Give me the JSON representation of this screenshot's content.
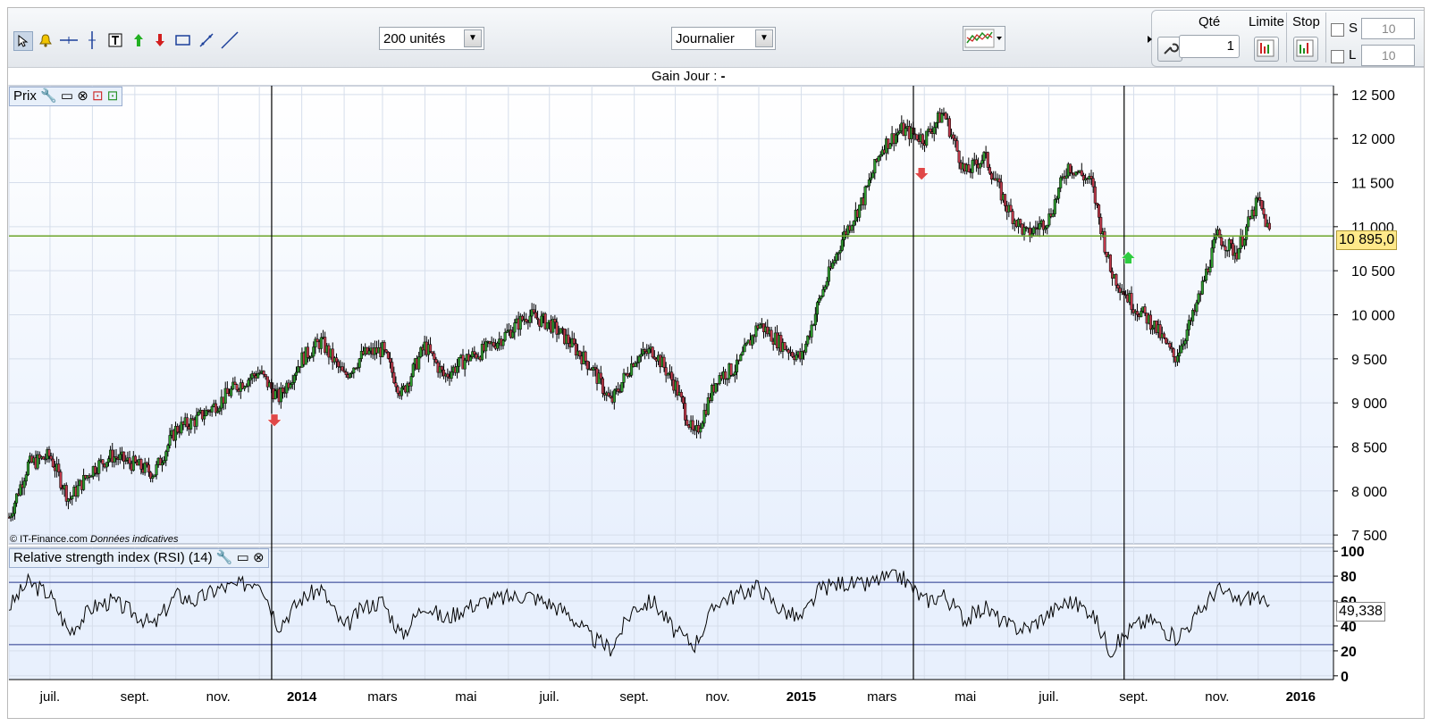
{
  "toolbar": {
    "units_select": "200 unités",
    "period_select": "Journalier",
    "order": {
      "qty_label": "Qté",
      "qty_value": "1",
      "limit_label": "Limite",
      "stop_label": "Stop",
      "s_label": "S",
      "l_label": "L",
      "s_value": "10",
      "l_value": "10"
    }
  },
  "header": {
    "gain_label": "Gain Jour :",
    "gain_value": "-"
  },
  "price_panel": {
    "title": "Prix",
    "current_price": "10 895,0",
    "copyright": "© IT-Finance.com",
    "disclaimer": "Données indicatives"
  },
  "rsi_panel": {
    "title": "Relative strength index (RSI) (14)",
    "current_value": "49,338"
  },
  "colors": {
    "up": "#2e9a2e",
    "down": "#c0394b",
    "horizontal_line": "#6ca52a",
    "panel_bg": "#e8f0fd",
    "grid": "#d6deeb"
  },
  "chart_data": [
    {
      "type": "candlestick",
      "title": "Prix",
      "x_axis_ticks": [
        "juil.",
        "sept.",
        "nov.",
        "2014",
        "mars",
        "mai",
        "juil.",
        "sept.",
        "nov.",
        "2015",
        "mars",
        "mai",
        "juil.",
        "sept.",
        "nov.",
        "2016"
      ],
      "y_ticks": [
        "12 500",
        "12 000",
        "11 500",
        "11 000",
        "10 500",
        "10 000",
        "9 500",
        "9 000",
        "8 500",
        "8 000",
        "7 500"
      ],
      "ylim": [
        7400,
        12600
      ],
      "horizontal_line": 10895,
      "vertical_markers": [
        "2013-12-10",
        "2015-03-24",
        "2015-08-25"
      ],
      "signals": [
        {
          "date": "2013-12-12",
          "direction": "down",
          "price": 8800
        },
        {
          "date": "2015-03-30",
          "direction": "down",
          "price": 11600
        },
        {
          "date": "2015-08-28",
          "direction": "up",
          "price": 10650
        }
      ],
      "series": [
        {
          "x": [
            "2013-06-01",
            "2013-06-15",
            "2013-07-01",
            "2013-07-15",
            "2013-08-01",
            "2013-08-15",
            "2013-09-01",
            "2013-09-15",
            "2013-10-01",
            "2013-10-15",
            "2013-11-01",
            "2013-11-15",
            "2013-12-01",
            "2013-12-15",
            "2014-01-01",
            "2014-01-15",
            "2014-02-01",
            "2014-02-15",
            "2014-03-01",
            "2014-03-15",
            "2014-04-01",
            "2014-04-15",
            "2014-05-01",
            "2014-05-15",
            "2014-06-01",
            "2014-06-15",
            "2014-07-01",
            "2014-07-15",
            "2014-08-01",
            "2014-08-15",
            "2014-09-01",
            "2014-09-15",
            "2014-10-01",
            "2014-10-15",
            "2014-11-01",
            "2014-11-15",
            "2014-12-01",
            "2014-12-15",
            "2015-01-01",
            "2015-01-15",
            "2015-02-01",
            "2015-02-15",
            "2015-03-01",
            "2015-03-15",
            "2015-04-01",
            "2015-04-15",
            "2015-05-01",
            "2015-05-15",
            "2015-06-01",
            "2015-06-15",
            "2015-07-01",
            "2015-07-15",
            "2015-08-01",
            "2015-08-15",
            "2015-09-01",
            "2015-09-15",
            "2015-10-01",
            "2015-10-15",
            "2015-11-01",
            "2015-11-15",
            "2015-12-01",
            "2015-12-10"
          ],
          "close": [
            7700,
            8300,
            8400,
            7900,
            8250,
            8400,
            8300,
            8200,
            8700,
            8800,
            9000,
            9200,
            9350,
            9050,
            9500,
            9700,
            9300,
            9550,
            9600,
            9100,
            9650,
            9300,
            9500,
            9600,
            9800,
            10000,
            9900,
            9700,
            9400,
            9000,
            9500,
            9600,
            9200,
            8600,
            9300,
            9400,
            9900,
            9700,
            9500,
            10200,
            10900,
            11300,
            11900,
            12100,
            12000,
            12300,
            11600,
            11800,
            11200,
            10900,
            11100,
            11700,
            11500,
            10500,
            10100,
            9900,
            9500,
            10000,
            10900,
            10700,
            11300,
            10895
          ]
        }
      ]
    },
    {
      "type": "line",
      "title": "Relative strength index (RSI) (14)",
      "y_ticks": [
        "100",
        "80",
        "60",
        "40",
        "20",
        "0"
      ],
      "ylim": [
        -3,
        103
      ],
      "overbought": 75,
      "oversold": 25,
      "series": [
        {
          "x": [
            "2013-06-01",
            "2013-06-15",
            "2013-07-01",
            "2013-07-15",
            "2013-08-01",
            "2013-08-15",
            "2013-09-01",
            "2013-09-15",
            "2013-10-01",
            "2013-10-15",
            "2013-11-01",
            "2013-11-15",
            "2013-12-01",
            "2013-12-15",
            "2014-01-01",
            "2014-01-15",
            "2014-02-01",
            "2014-02-15",
            "2014-03-01",
            "2014-03-15",
            "2014-04-01",
            "2014-04-15",
            "2014-05-01",
            "2014-05-15",
            "2014-06-01",
            "2014-06-15",
            "2014-07-01",
            "2014-07-15",
            "2014-08-01",
            "2014-08-15",
            "2014-09-01",
            "2014-09-15",
            "2014-10-01",
            "2014-10-15",
            "2014-11-01",
            "2014-11-15",
            "2014-12-01",
            "2014-12-15",
            "2015-01-01",
            "2015-01-15",
            "2015-02-01",
            "2015-02-15",
            "2015-03-01",
            "2015-03-15",
            "2015-04-01",
            "2015-04-15",
            "2015-05-01",
            "2015-05-15",
            "2015-06-01",
            "2015-06-15",
            "2015-07-01",
            "2015-07-15",
            "2015-08-01",
            "2015-08-15",
            "2015-09-01",
            "2015-09-15",
            "2015-10-01",
            "2015-10-15",
            "2015-11-01",
            "2015-11-15",
            "2015-12-01",
            "2015-12-10"
          ],
          "values": [
            55,
            75,
            65,
            35,
            55,
            60,
            50,
            40,
            65,
            60,
            70,
            72,
            78,
            40,
            62,
            70,
            38,
            55,
            60,
            32,
            58,
            45,
            55,
            60,
            63,
            65,
            58,
            50,
            30,
            22,
            55,
            60,
            35,
            25,
            60,
            65,
            72,
            55,
            45,
            70,
            75,
            72,
            78,
            80,
            60,
            65,
            45,
            55,
            40,
            38,
            50,
            60,
            52,
            20,
            40,
            45,
            30,
            45,
            70,
            60,
            65,
            49.3
          ]
        }
      ]
    }
  ]
}
